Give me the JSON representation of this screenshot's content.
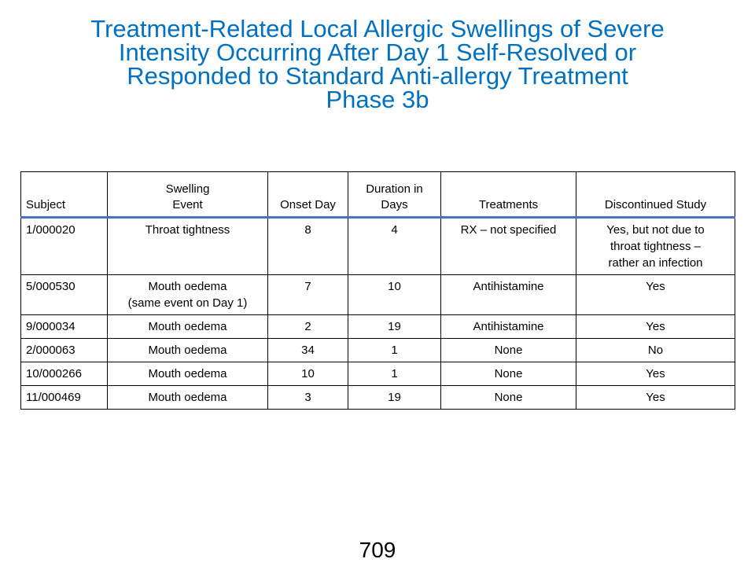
{
  "title_lines": [
    "Treatment-Related Local Allergic Swellings of Severe",
    "Intensity Occurring After Day 1 Self-Resolved or",
    "Responded to Standard Anti-allergy Treatment",
    "Phase 3b"
  ],
  "table": {
    "headers": [
      "Subject",
      "Swelling\nEvent",
      "Onset Day",
      "Duration in\nDays",
      "Treatments",
      "Discontinued Study"
    ],
    "rows": [
      [
        "1/000020",
        "Throat tightness",
        "8",
        "4",
        "RX – not specified",
        "Yes, but not due to\nthroat tightness –\nrather an infection"
      ],
      [
        "5/000530",
        "Mouth oedema\n(same event on Day 1)",
        "7",
        "10",
        "Antihistamine",
        "Yes"
      ],
      [
        "9/000034",
        "Mouth oedema",
        "2",
        "19",
        "Antihistamine",
        "Yes"
      ],
      [
        "2/000063",
        "Mouth oedema",
        "34",
        "1",
        "None",
        "No"
      ],
      [
        "10/000266",
        "Mouth oedema",
        "10",
        "1",
        "None",
        "Yes"
      ],
      [
        "11/000469",
        "Mouth oedema",
        "3",
        "19",
        "None",
        "Yes"
      ]
    ]
  },
  "page_number": "709",
  "colors": {
    "title": "#0070c0",
    "header_rule": "#4472c4"
  }
}
